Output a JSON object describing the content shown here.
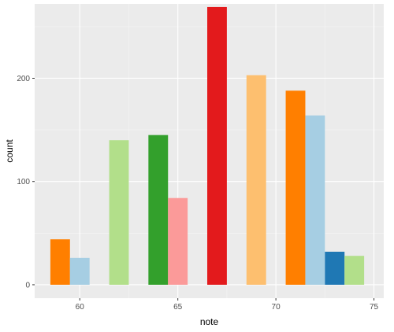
{
  "chart_data": {
    "type": "bar",
    "title": "",
    "xlabel": "note",
    "ylabel": "count",
    "xlim": [
      57.7,
      75.5
    ],
    "ylim": [
      -13,
      272
    ],
    "x_ticks": [
      60,
      65,
      70,
      75
    ],
    "y_ticks": [
      0,
      100,
      200
    ],
    "bar_width": 1.0,
    "bars": [
      {
        "x": 59.0,
        "value": 44,
        "color": "#FF7F00"
      },
      {
        "x": 60.0,
        "value": 26,
        "color": "#A6CEE3"
      },
      {
        "x": 62.0,
        "value": 140,
        "color": "#B2DF8A"
      },
      {
        "x": 64.0,
        "value": 145,
        "color": "#33A02C"
      },
      {
        "x": 65.0,
        "value": 84,
        "color": "#FB9A99"
      },
      {
        "x": 67.0,
        "value": 269,
        "color": "#E31A1C"
      },
      {
        "x": 69.0,
        "value": 203,
        "color": "#FDBF6F"
      },
      {
        "x": 71.0,
        "value": 188,
        "color": "#FF7F00"
      },
      {
        "x": 72.0,
        "value": 164,
        "color": "#A6CEE3"
      },
      {
        "x": 73.0,
        "value": 32,
        "color": "#1F78B4"
      },
      {
        "x": 74.0,
        "value": 28,
        "color": "#B2DF8A"
      }
    ],
    "grid": true,
    "legend": "none"
  },
  "colors": {
    "panel_background": "#EBEBEB",
    "grid_major": "#FFFFFF",
    "grid_minor": "#F5F5F5",
    "tick_text": "#4D4D4D"
  }
}
